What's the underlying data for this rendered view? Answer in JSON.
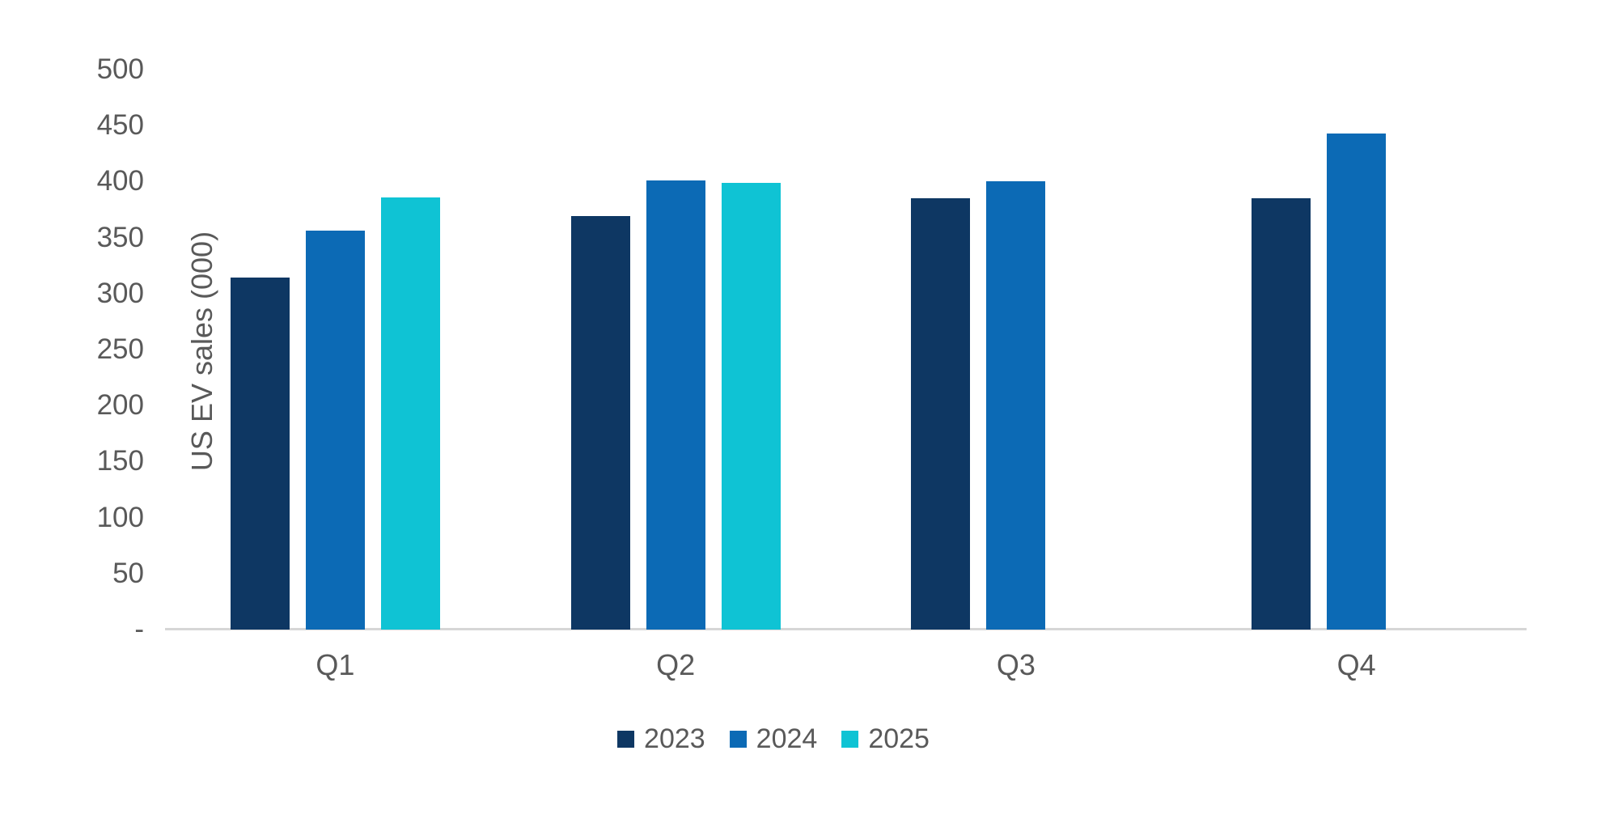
{
  "page": {
    "background": "#ffffff"
  },
  "chart_data": {
    "type": "bar",
    "title": "",
    "xlabel": "",
    "ylabel": "US EV sales (000)",
    "categories": [
      "Q1",
      "Q2",
      "Q3",
      "Q4"
    ],
    "series": [
      {
        "name": "2023",
        "color": "#0e3763",
        "values": [
          314,
          369,
          385,
          385
        ]
      },
      {
        "name": "2024",
        "color": "#0c6ab5",
        "values": [
          356,
          401,
          400,
          443
        ]
      },
      {
        "name": "2025",
        "color": "#0fc3d4",
        "values": [
          386,
          399,
          null,
          null
        ]
      }
    ],
    "ylim": [
      0,
      500
    ],
    "ytick_step": 50,
    "ytick_labels": [
      "-",
      "50",
      "100",
      "150",
      "200",
      "250",
      "300",
      "350",
      "400",
      "450",
      "500"
    ],
    "grid": false,
    "legend_position": "bottom",
    "legend": [
      "2023",
      "2024",
      "2025"
    ],
    "axis_line_color": "#d6d6d6",
    "text_color": "#595959"
  }
}
